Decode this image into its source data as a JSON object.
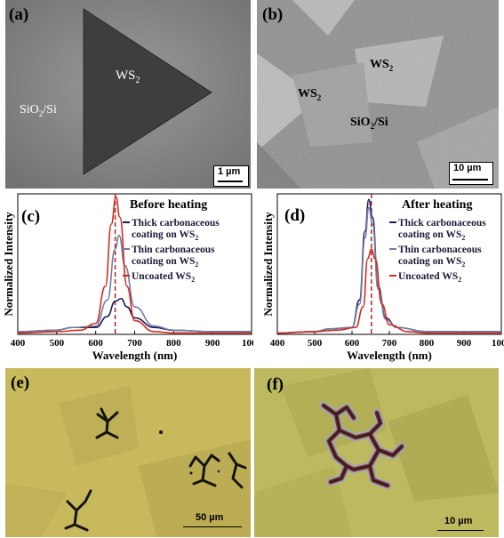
{
  "panels": {
    "a": {
      "label": "(a)",
      "material": "WS",
      "sub": "2",
      "substrate": "SiO",
      "substrate_sub": "2",
      "substrate_tail": "/Si",
      "scale": "1 µm"
    },
    "b": {
      "label": "(b)",
      "material": "WS",
      "sub": "2",
      "substrate": "SiO",
      "substrate_sub": "2",
      "substrate_tail": "/Si",
      "scale": "10 µm"
    },
    "e": {
      "label": "(e)",
      "scale": "50 µm"
    },
    "f": {
      "label": "(f)",
      "scale": "10 µm"
    }
  },
  "chart_data": [
    {
      "type": "line",
      "panel_label": "(c)",
      "title": "Before heating",
      "xlabel": "Wavelength (nm)",
      "ylabel": "Normalized Intensity",
      "xlim": [
        400,
        1000
      ],
      "xticks": [
        "400",
        "500",
        "600",
        "700",
        "800",
        "900",
        "1000"
      ],
      "grid": false,
      "legend_position": "right",
      "reference_line_x": 650,
      "series": [
        {
          "name": "Thick carbonaceous coating on WS2",
          "legend_main": "Thick carbonaceous",
          "legend_line2": "coating on WS",
          "legend_sub": "2",
          "color": "#1b1b5e",
          "x": [
            400,
            500,
            540,
            600,
            630,
            650,
            665,
            680,
            700,
            750,
            800,
            900,
            1000
          ],
          "y": [
            0.02,
            0.03,
            0.05,
            0.05,
            0.13,
            0.24,
            0.26,
            0.2,
            0.12,
            0.05,
            0.03,
            0.02,
            0.02
          ]
        },
        {
          "name": "Thin carbonaceous coating on WS2",
          "legend_main": "Thin carbonaceous",
          "legend_line2": "coating on WS",
          "legend_sub": "2",
          "color": "#6f7fa8",
          "x": [
            400,
            500,
            540,
            600,
            630,
            650,
            660,
            675,
            700,
            750,
            800,
            900,
            1000
          ],
          "y": [
            0.02,
            0.03,
            0.05,
            0.06,
            0.25,
            0.62,
            0.72,
            0.5,
            0.2,
            0.06,
            0.03,
            0.02,
            0.02
          ]
        },
        {
          "name": "Uncoated WS2",
          "legend_main": "Uncoated WS",
          "legend_line2": "",
          "legend_sub": "2",
          "color": "#d52b1e",
          "x": [
            400,
            500,
            560,
            600,
            625,
            640,
            652,
            662,
            680,
            700,
            750,
            800,
            1000
          ],
          "y": [
            0.01,
            0.02,
            0.03,
            0.08,
            0.35,
            0.8,
            1.0,
            0.85,
            0.35,
            0.1,
            0.02,
            0.01,
            0.01
          ]
        }
      ]
    },
    {
      "type": "line",
      "panel_label": "(d)",
      "title": "After heating",
      "xlabel": "Wavelength (nm)",
      "ylabel": "Normalized Intensity",
      "xlim": [
        400,
        1000
      ],
      "xticks": [
        "400",
        "500",
        "600",
        "700",
        "800",
        "900",
        "1000"
      ],
      "grid": false,
      "legend_position": "right",
      "reference_line_x": 652,
      "series": [
        {
          "name": "Thick carbonaceous coating on WS2",
          "legend_main": "Thick carbonaceous",
          "legend_line2": "coating on WS",
          "legend_sub": "2",
          "color": "#1b1b5e",
          "x": [
            400,
            500,
            540,
            600,
            620,
            635,
            645,
            655,
            670,
            690,
            720,
            800,
            900,
            1000
          ],
          "y": [
            0.01,
            0.02,
            0.04,
            0.05,
            0.25,
            0.75,
            0.98,
            0.85,
            0.35,
            0.12,
            0.05,
            0.02,
            0.02,
            0.02
          ]
        },
        {
          "name": "Thin carbonaceous coating on WS2",
          "legend_main": "Thin carbonaceous",
          "legend_line2": "coating on WS",
          "legend_sub": "2",
          "color": "#6f7fa8",
          "x": [
            400,
            500,
            540,
            600,
            620,
            635,
            645,
            655,
            670,
            690,
            720,
            800,
            900,
            1000
          ],
          "y": [
            0.01,
            0.02,
            0.04,
            0.05,
            0.22,
            0.7,
            0.92,
            0.8,
            0.33,
            0.11,
            0.05,
            0.02,
            0.02,
            0.02
          ]
        },
        {
          "name": "Uncoated WS2",
          "legend_main": "Uncoated WS",
          "legend_line2": "",
          "legend_sub": "2",
          "color": "#d52b1e",
          "x": [
            400,
            500,
            560,
            610,
            630,
            642,
            652,
            662,
            680,
            700,
            750,
            800,
            1000
          ],
          "y": [
            0.01,
            0.02,
            0.03,
            0.05,
            0.2,
            0.55,
            0.62,
            0.55,
            0.22,
            0.07,
            0.02,
            0.01,
            0.01
          ]
        }
      ]
    }
  ]
}
